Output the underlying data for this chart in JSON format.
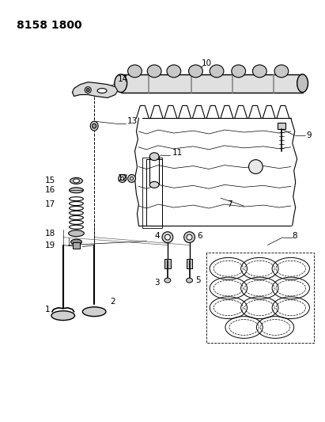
{
  "title": "8158 1800",
  "bg_color": "#ffffff",
  "line_color": "#000000",
  "title_fontsize": 10,
  "label_fontsize": 7.5,
  "fig_width": 4.11,
  "fig_height": 5.33,
  "dpi": 100
}
